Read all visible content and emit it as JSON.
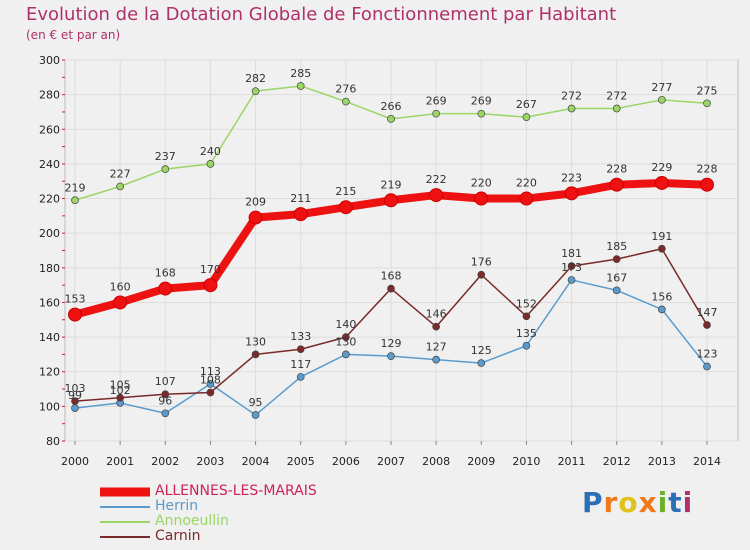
{
  "title": "Evolution de la Dotation Globale de Fonctionnement par Habitant",
  "subtitle": "(en € et par an)",
  "logo": {
    "text": "Proxiti",
    "colors": [
      "#2b6fb4",
      "#f07a1a",
      "#e0c21a",
      "#f07a1a",
      "#6cb02a",
      "#2b6fb4",
      "#b0306a"
    ]
  },
  "chart_data": {
    "type": "line",
    "title": "Evolution de la Dotation Globale de Fonctionnement par Habitant",
    "subtitle": "(en € et par an)",
    "x": [
      "2000",
      "2001",
      "2002",
      "2003",
      "2004",
      "2005",
      "2006",
      "2007",
      "2008",
      "2009",
      "2010",
      "2011",
      "2012",
      "2013",
      "2014"
    ],
    "ylim": [
      80,
      300
    ],
    "yticks": [
      80,
      100,
      120,
      140,
      160,
      180,
      200,
      220,
      240,
      260,
      280,
      300
    ],
    "grid": true,
    "series": [
      {
        "name": "ALLENNES-LES-MARAIS",
        "color": "#ee1111",
        "values": [
          153,
          160,
          168,
          170,
          209,
          211,
          215,
          219,
          222,
          220,
          220,
          223,
          228,
          229,
          228
        ]
      },
      {
        "name": "Herrin",
        "color": "#5b9bcc",
        "values": [
          99,
          102,
          96,
          113,
          95,
          117,
          130,
          129,
          127,
          125,
          135,
          173,
          167,
          156,
          123
        ]
      },
      {
        "name": "Annoeullin",
        "color": "#9ad565",
        "values": [
          219,
          227,
          237,
          240,
          282,
          285,
          276,
          266,
          269,
          269,
          267,
          272,
          272,
          277,
          275
        ]
      },
      {
        "name": "Carnin",
        "color": "#7a2a2a",
        "values": [
          103,
          105,
          107,
          108,
          130,
          133,
          140,
          168,
          146,
          176,
          152,
          181,
          185,
          191,
          147
        ]
      }
    ]
  }
}
